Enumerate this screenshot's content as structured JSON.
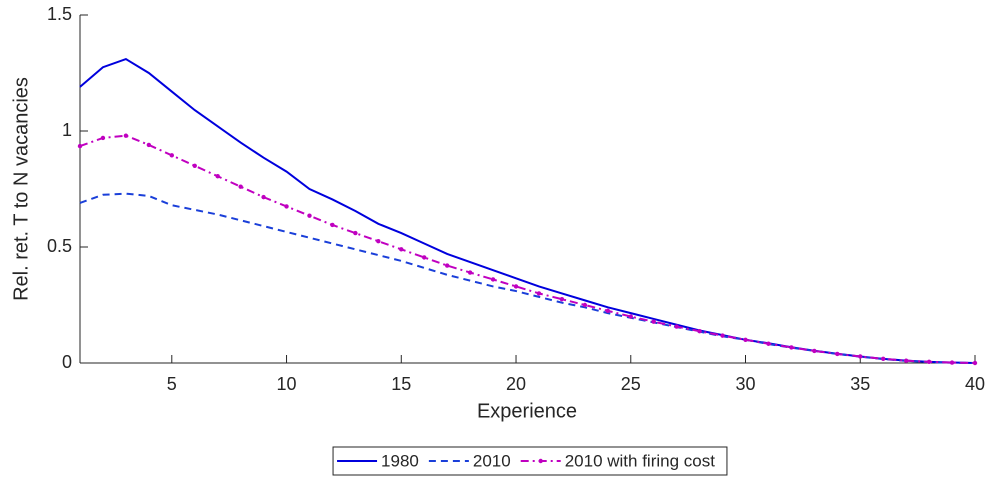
{
  "chart_data": {
    "type": "line",
    "x_label": "Experience",
    "y_label": "Rel. ret. T to N vacancies",
    "x": [
      1,
      2,
      3,
      4,
      5,
      6,
      7,
      8,
      9,
      10,
      11,
      12,
      13,
      14,
      15,
      16,
      17,
      18,
      19,
      20,
      21,
      22,
      23,
      24,
      25,
      26,
      27,
      28,
      29,
      30,
      31,
      32,
      33,
      34,
      35,
      36,
      37,
      38,
      39,
      40
    ],
    "xlim": [
      1,
      40
    ],
    "xticks": [
      5,
      10,
      15,
      20,
      25,
      30,
      35,
      40
    ],
    "ylim": [
      0,
      1.5
    ],
    "yticks": [
      0,
      0.5,
      1,
      1.5
    ],
    "legend": "bottom",
    "series": [
      {
        "name": "1980",
        "color": "#0000dd",
        "linestyle": "solid",
        "values": [
          1.19,
          1.275,
          1.31,
          1.25,
          1.17,
          1.09,
          1.02,
          0.95,
          0.885,
          0.825,
          0.75,
          0.705,
          0.655,
          0.6,
          0.56,
          0.515,
          0.47,
          0.435,
          0.4,
          0.365,
          0.33,
          0.3,
          0.27,
          0.24,
          0.215,
          0.19,
          0.165,
          0.14,
          0.12,
          0.1,
          0.085,
          0.068,
          0.053,
          0.04,
          0.028,
          0.018,
          0.01,
          0.005,
          0.002,
          0
        ]
      },
      {
        "name": "2010",
        "color": "#1a3fd9",
        "linestyle": "dashed",
        "values": [
          0.69,
          0.725,
          0.73,
          0.72,
          0.68,
          0.66,
          0.64,
          0.615,
          0.59,
          0.565,
          0.54,
          0.515,
          0.49,
          0.465,
          0.44,
          0.41,
          0.38,
          0.355,
          0.33,
          0.31,
          0.285,
          0.26,
          0.24,
          0.215,
          0.195,
          0.175,
          0.155,
          0.135,
          0.115,
          0.1,
          0.082,
          0.066,
          0.052,
          0.039,
          0.027,
          0.017,
          0.009,
          0.004,
          0.001,
          0
        ]
      },
      {
        "name": "2010 with firing cost",
        "color": "#c000c0",
        "linestyle": "dashdot",
        "marker": "dot",
        "values": [
          0.935,
          0.97,
          0.98,
          0.94,
          0.895,
          0.85,
          0.805,
          0.76,
          0.715,
          0.675,
          0.635,
          0.595,
          0.56,
          0.525,
          0.49,
          0.455,
          0.42,
          0.39,
          0.36,
          0.33,
          0.3,
          0.275,
          0.25,
          0.225,
          0.2,
          0.178,
          0.157,
          0.137,
          0.118,
          0.1,
          0.083,
          0.067,
          0.052,
          0.039,
          0.028,
          0.018,
          0.01,
          0.005,
          0.002,
          0
        ]
      }
    ]
  }
}
